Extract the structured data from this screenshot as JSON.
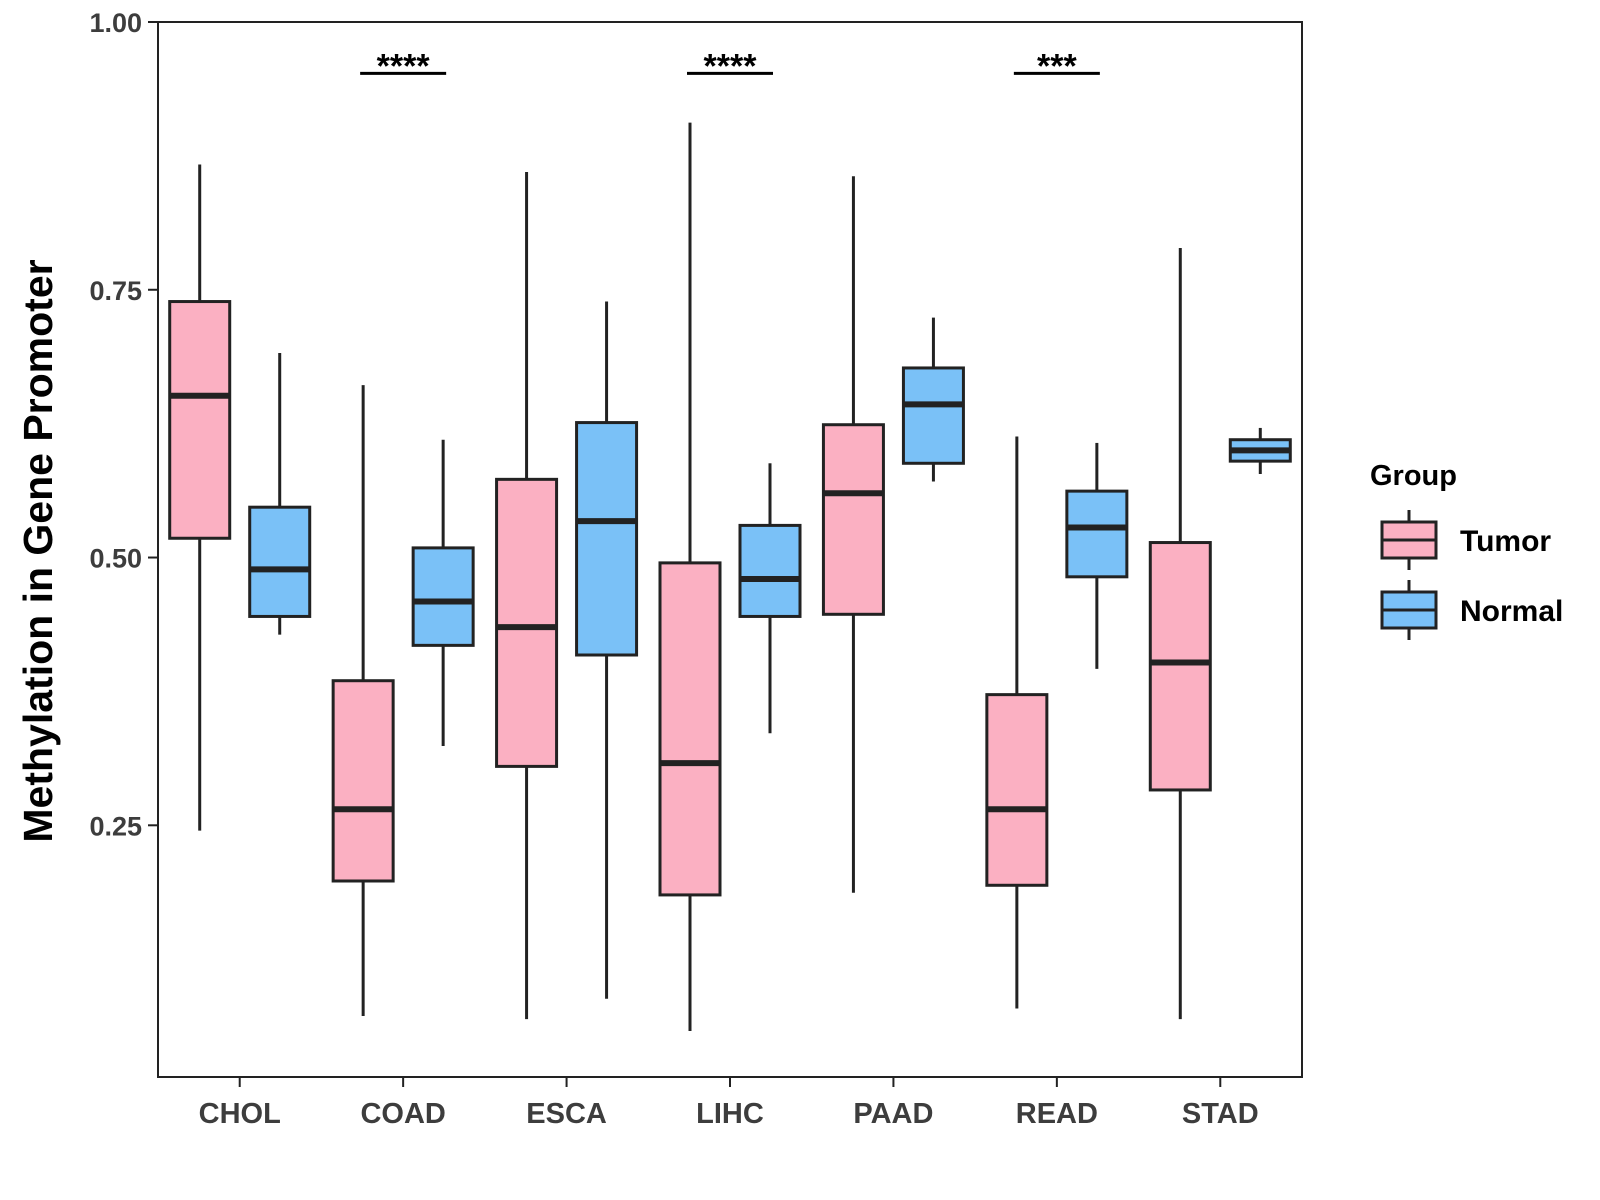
{
  "chart_data": {
    "type": "boxplot",
    "title": "",
    "xlabel": "",
    "ylabel": "Methylation in Gene Promoter",
    "ylim": [
      0.015,
      1.0
    ],
    "yticks": [
      0.25,
      0.5,
      0.75,
      1.0
    ],
    "ytick_labels": [
      "0.25",
      "0.50",
      "0.75",
      "1.00"
    ],
    "categories": [
      "CHOL",
      "COAD",
      "ESCA",
      "LIHC",
      "PAAD",
      "READ",
      "STAD"
    ],
    "series": [
      {
        "name": "Tumor",
        "color": "#FBB0C2",
        "boxes": [
          {
            "min": 0.245,
            "q1": 0.518,
            "median": 0.651,
            "q3": 0.739,
            "max": 0.867
          },
          {
            "min": 0.072,
            "q1": 0.198,
            "median": 0.265,
            "q3": 0.385,
            "max": 0.661
          },
          {
            "min": 0.069,
            "q1": 0.305,
            "median": 0.435,
            "q3": 0.573,
            "max": 0.86
          },
          {
            "min": 0.058,
            "q1": 0.185,
            "median": 0.308,
            "q3": 0.495,
            "max": 0.906
          },
          {
            "min": 0.187,
            "q1": 0.447,
            "median": 0.56,
            "q3": 0.624,
            "max": 0.856
          },
          {
            "min": 0.079,
            "q1": 0.194,
            "median": 0.265,
            "q3": 0.372,
            "max": 0.613
          },
          {
            "min": 0.069,
            "q1": 0.283,
            "median": 0.402,
            "q3": 0.514,
            "max": 0.789
          }
        ]
      },
      {
        "name": "Normal",
        "color": "#7AC1F7",
        "boxes": [
          {
            "min": 0.428,
            "q1": 0.445,
            "median": 0.489,
            "q3": 0.547,
            "max": 0.691
          },
          {
            "min": 0.324,
            "q1": 0.418,
            "median": 0.459,
            "q3": 0.509,
            "max": 0.61
          },
          {
            "min": 0.088,
            "q1": 0.409,
            "median": 0.534,
            "q3": 0.626,
            "max": 0.739
          },
          {
            "min": 0.336,
            "q1": 0.445,
            "median": 0.48,
            "q3": 0.53,
            "max": 0.588
          },
          {
            "min": 0.571,
            "q1": 0.588,
            "median": 0.643,
            "q3": 0.677,
            "max": 0.724
          },
          {
            "min": 0.396,
            "q1": 0.482,
            "median": 0.528,
            "q3": 0.562,
            "max": 0.607
          },
          {
            "min": 0.578,
            "q1": 0.59,
            "median": 0.6,
            "q3": 0.61,
            "max": 0.621
          }
        ]
      }
    ],
    "significance": [
      {
        "category": "COAD",
        "label": "****"
      },
      {
        "category": "LIHC",
        "label": "****"
      },
      {
        "category": "READ",
        "label": "***"
      }
    ],
    "legend": {
      "title": "Group",
      "placement": "right",
      "entries": [
        "Tumor",
        "Normal"
      ]
    }
  }
}
